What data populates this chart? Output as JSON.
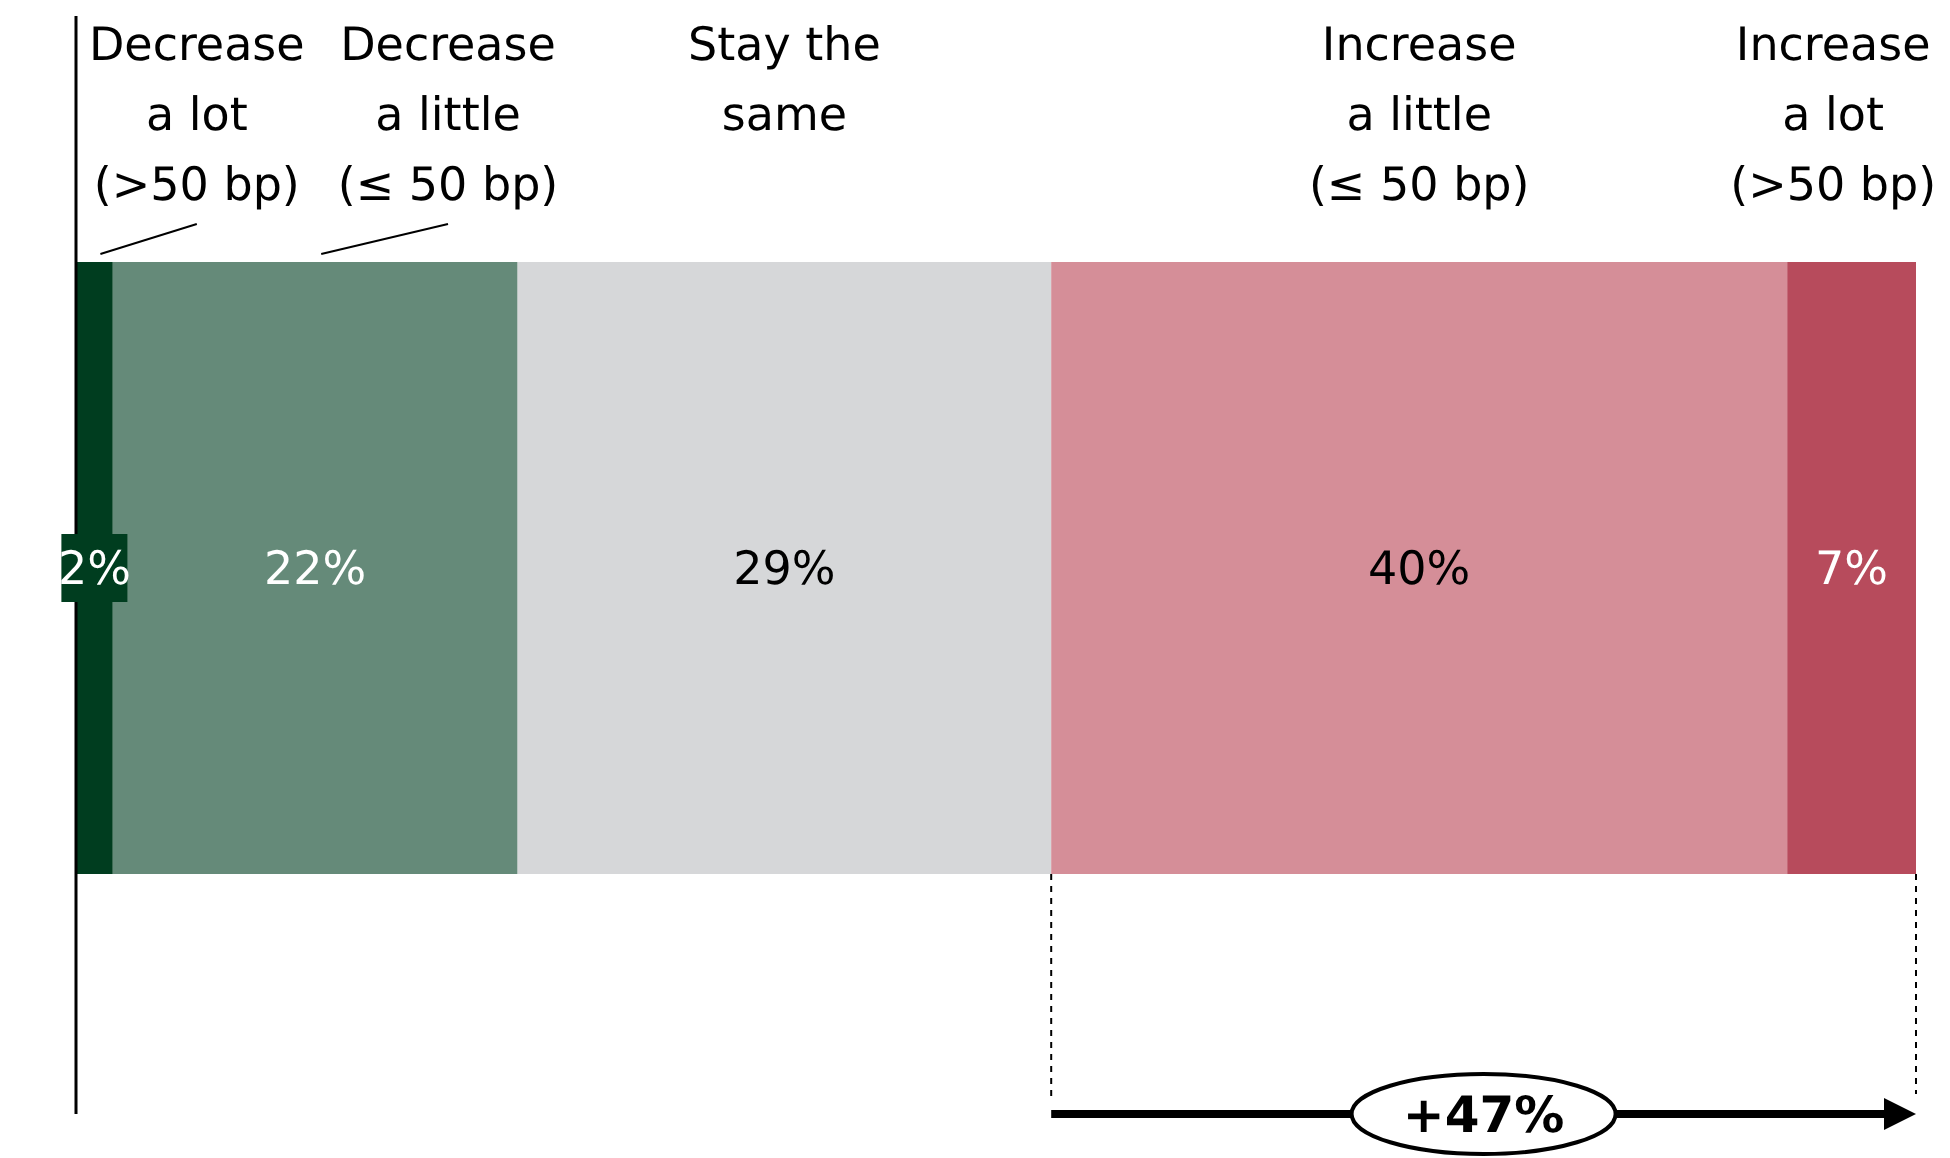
{
  "chart_data": {
    "type": "bar",
    "orientation": "horizontal",
    "stacked": true,
    "categories": [
      null
    ],
    "xlim": [
      0,
      100
    ],
    "legend": "top",
    "series": [
      {
        "name": "Decrease\na lot\n(>50 bp)",
        "color": "#003d1f",
        "values": [
          2
        ],
        "value_labels": [
          "2%"
        ]
      },
      {
        "name": "Decrease\na little\n(≤ 50 bp)",
        "color": "#658a79",
        "values": [
          22
        ],
        "value_labels": [
          "22%"
        ]
      },
      {
        "name": "Stay the\nsame",
        "color": "#d6d7d9",
        "values": [
          29
        ],
        "value_labels": [
          "29%"
        ]
      },
      {
        "name": "Increase\na little\n(≤ 50 bp)",
        "color": "#d58e98",
        "values": [
          40
        ],
        "value_labels": [
          "40%"
        ]
      },
      {
        "name": "Increase\na lot\n(>50 bp)",
        "color": "#b74b5c",
        "values": [
          7
        ],
        "value_labels": [
          "7%"
        ]
      }
    ],
    "annotations": [
      "+47%"
    ]
  }
}
